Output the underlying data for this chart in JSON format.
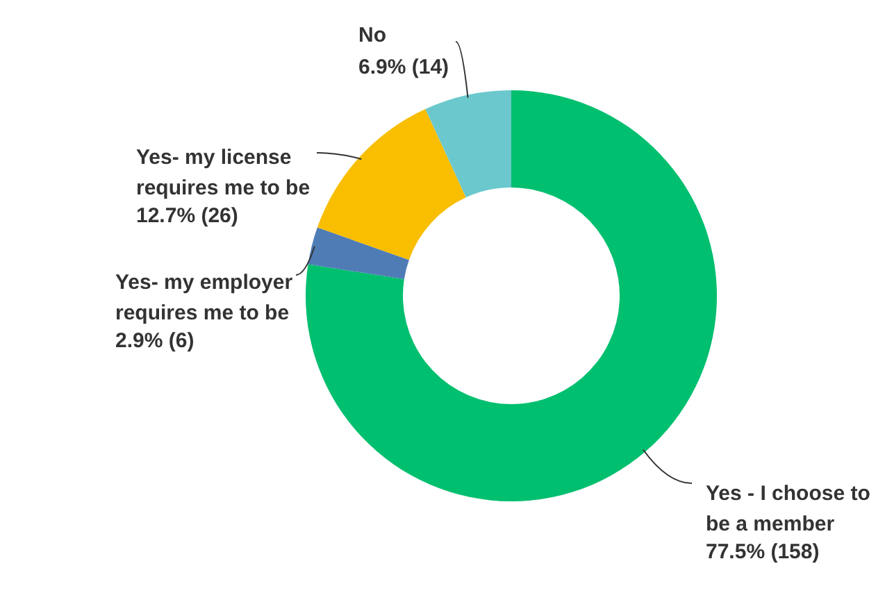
{
  "chart_data": {
    "type": "donut",
    "categories": [
      "Yes - I choose to be a member",
      "Yes- my employer requires me to be",
      "Yes- my license requires me to be",
      "No"
    ],
    "values": [
      158,
      6,
      26,
      14
    ],
    "value_labels": [
      "77.5% (158)",
      "2.9% (6)",
      "12.7% (26)",
      "6.9% (14)"
    ],
    "colors": [
      "#00bf6f",
      "#507cb6",
      "#f9be00",
      "#6bc8cd"
    ]
  }
}
